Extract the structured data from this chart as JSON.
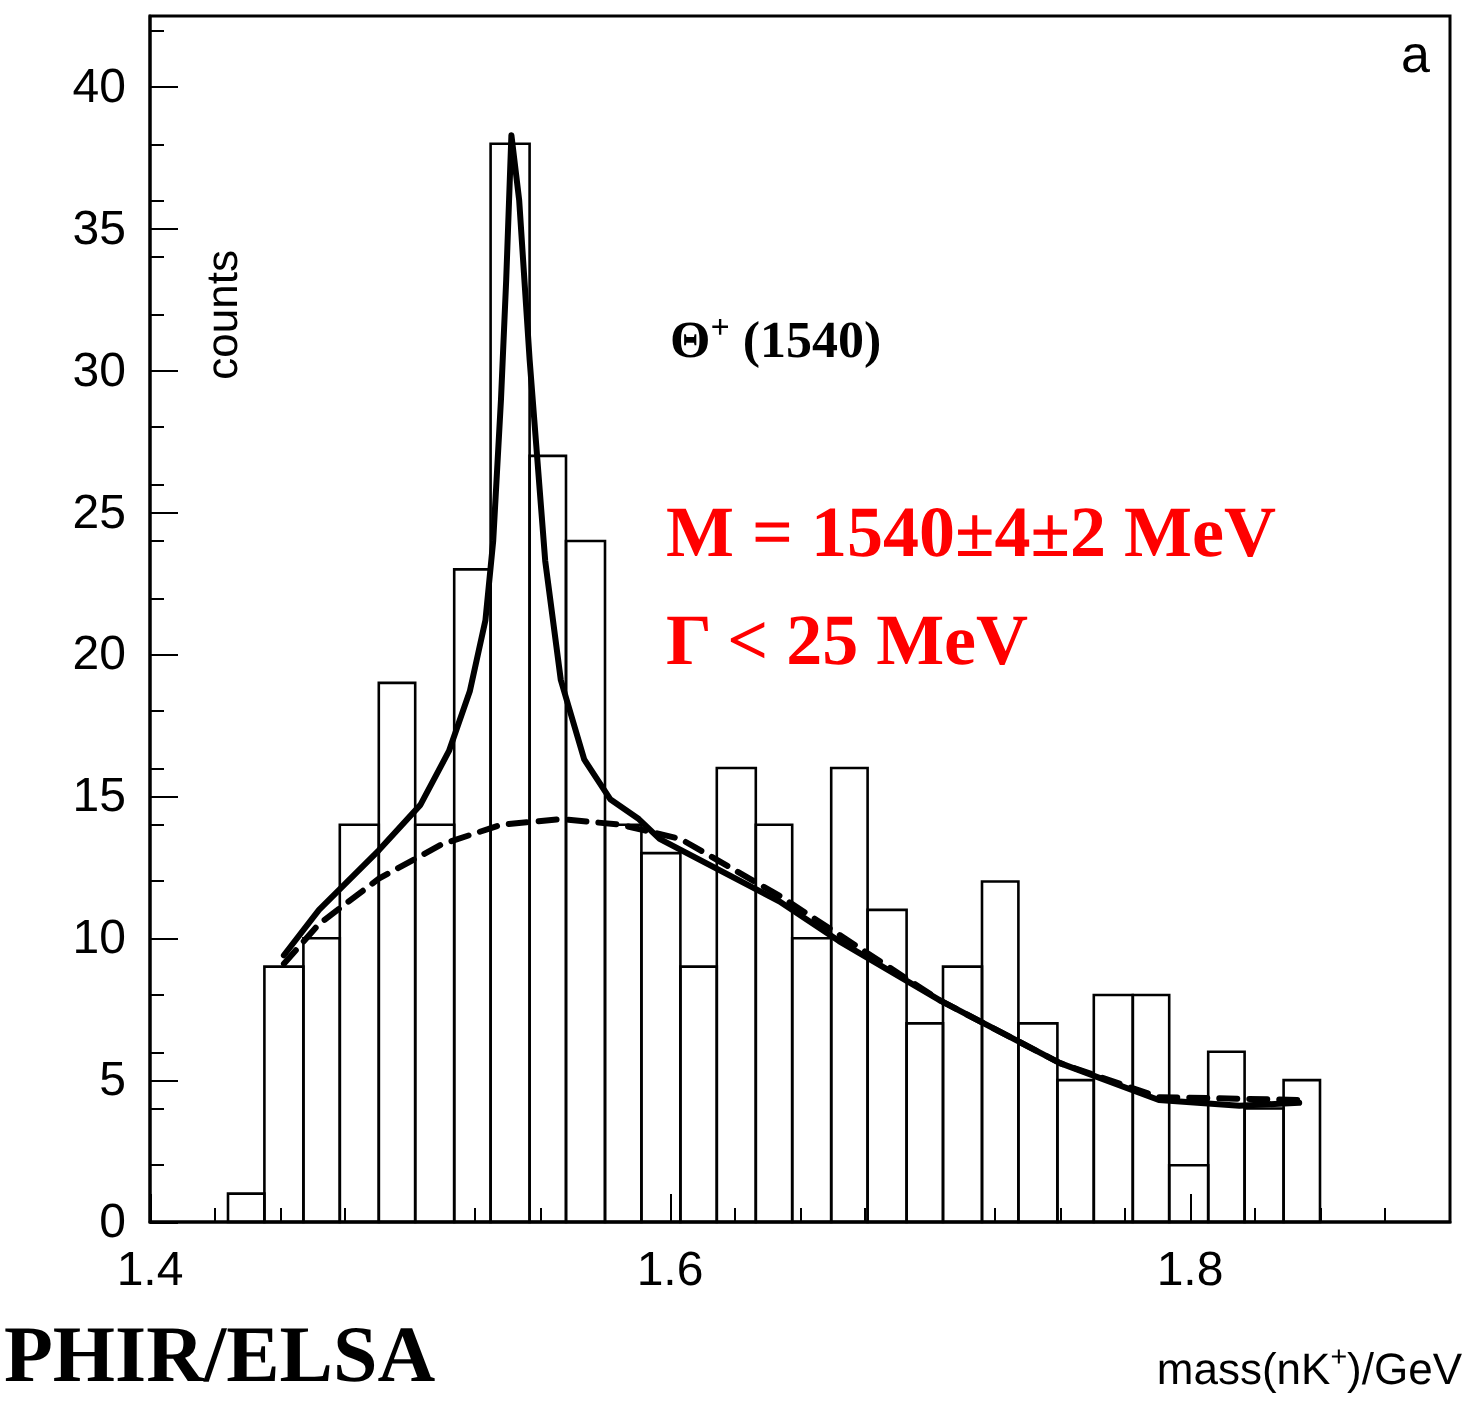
{
  "chart_data": {
    "type": "histogram",
    "ylabel": "counts",
    "xlabel": "mass(nK$^{+}$)/GeV",
    "annotations": [
      "a",
      "Θ$^{+}$ (1540)",
      "M = 1540±4±2 MeV",
      "Γ < 25 MeV",
      "PHIR/ELSA"
    ],
    "bins": [
      1.43,
      1.444,
      1.459,
      1.473,
      1.488,
      1.502,
      1.517,
      1.531,
      1.546,
      1.56,
      1.575,
      1.589,
      1.604,
      1.618,
      1.633,
      1.647,
      1.662,
      1.676,
      1.691,
      1.705,
      1.72,
      1.734,
      1.749,
      1.763,
      1.778,
      1.792,
      1.807,
      1.821,
      1.836,
      1.85
    ],
    "values": [
      1,
      9,
      10,
      14,
      19,
      14,
      23,
      38,
      27,
      24,
      14,
      13,
      9,
      16,
      14,
      10,
      16,
      11,
      7,
      9,
      12,
      7,
      5,
      8,
      8,
      2,
      6,
      4,
      5
    ],
    "color": "#000000",
    "series": [
      {
        "type": "line",
        "color": "#000000",
        "line_style": "solid",
        "x": [
          1.4515,
          1.465,
          1.488,
          1.504,
          1.515,
          1.523,
          1.529,
          1.532,
          1.535,
          1.537,
          1.539,
          1.542,
          1.546,
          1.552,
          1.558,
          1.567,
          1.577,
          1.588,
          1.596,
          1.642,
          1.665,
          1.704,
          1.75,
          1.788,
          1.819,
          1.842
        ],
        "values": [
          9.4,
          11,
          13.1,
          14.7,
          16.6,
          18.7,
          21.2,
          24,
          29,
          33.2,
          38.3,
          36,
          30.4,
          23.3,
          19.1,
          16.3,
          14.9,
          14.2,
          13.5,
          11.3,
          9.9,
          7.8,
          5.6,
          4.3,
          4.1,
          4.2
        ]
      },
      {
        "type": "line",
        "color": "#000000",
        "line_style": "dashed",
        "x": [
          1.4515,
          1.465,
          1.488,
          1.512,
          1.535,
          1.558,
          1.581,
          1.604,
          1.642,
          1.704,
          1.75,
          1.788,
          1.842
        ],
        "values": [
          9.1,
          10.5,
          12.1,
          13.3,
          14,
          14.2,
          14,
          13.5,
          11.5,
          7.8,
          5.6,
          4.4,
          4.3
        ]
      }
    ],
    "xlim": [
      1.4,
      1.9
    ],
    "xticks": [
      1.4,
      1.6,
      1.8
    ],
    "ylim": [
      0,
      42.5
    ],
    "yticks": [
      0,
      5,
      10,
      15,
      20,
      25,
      30,
      35,
      40
    ]
  }
}
